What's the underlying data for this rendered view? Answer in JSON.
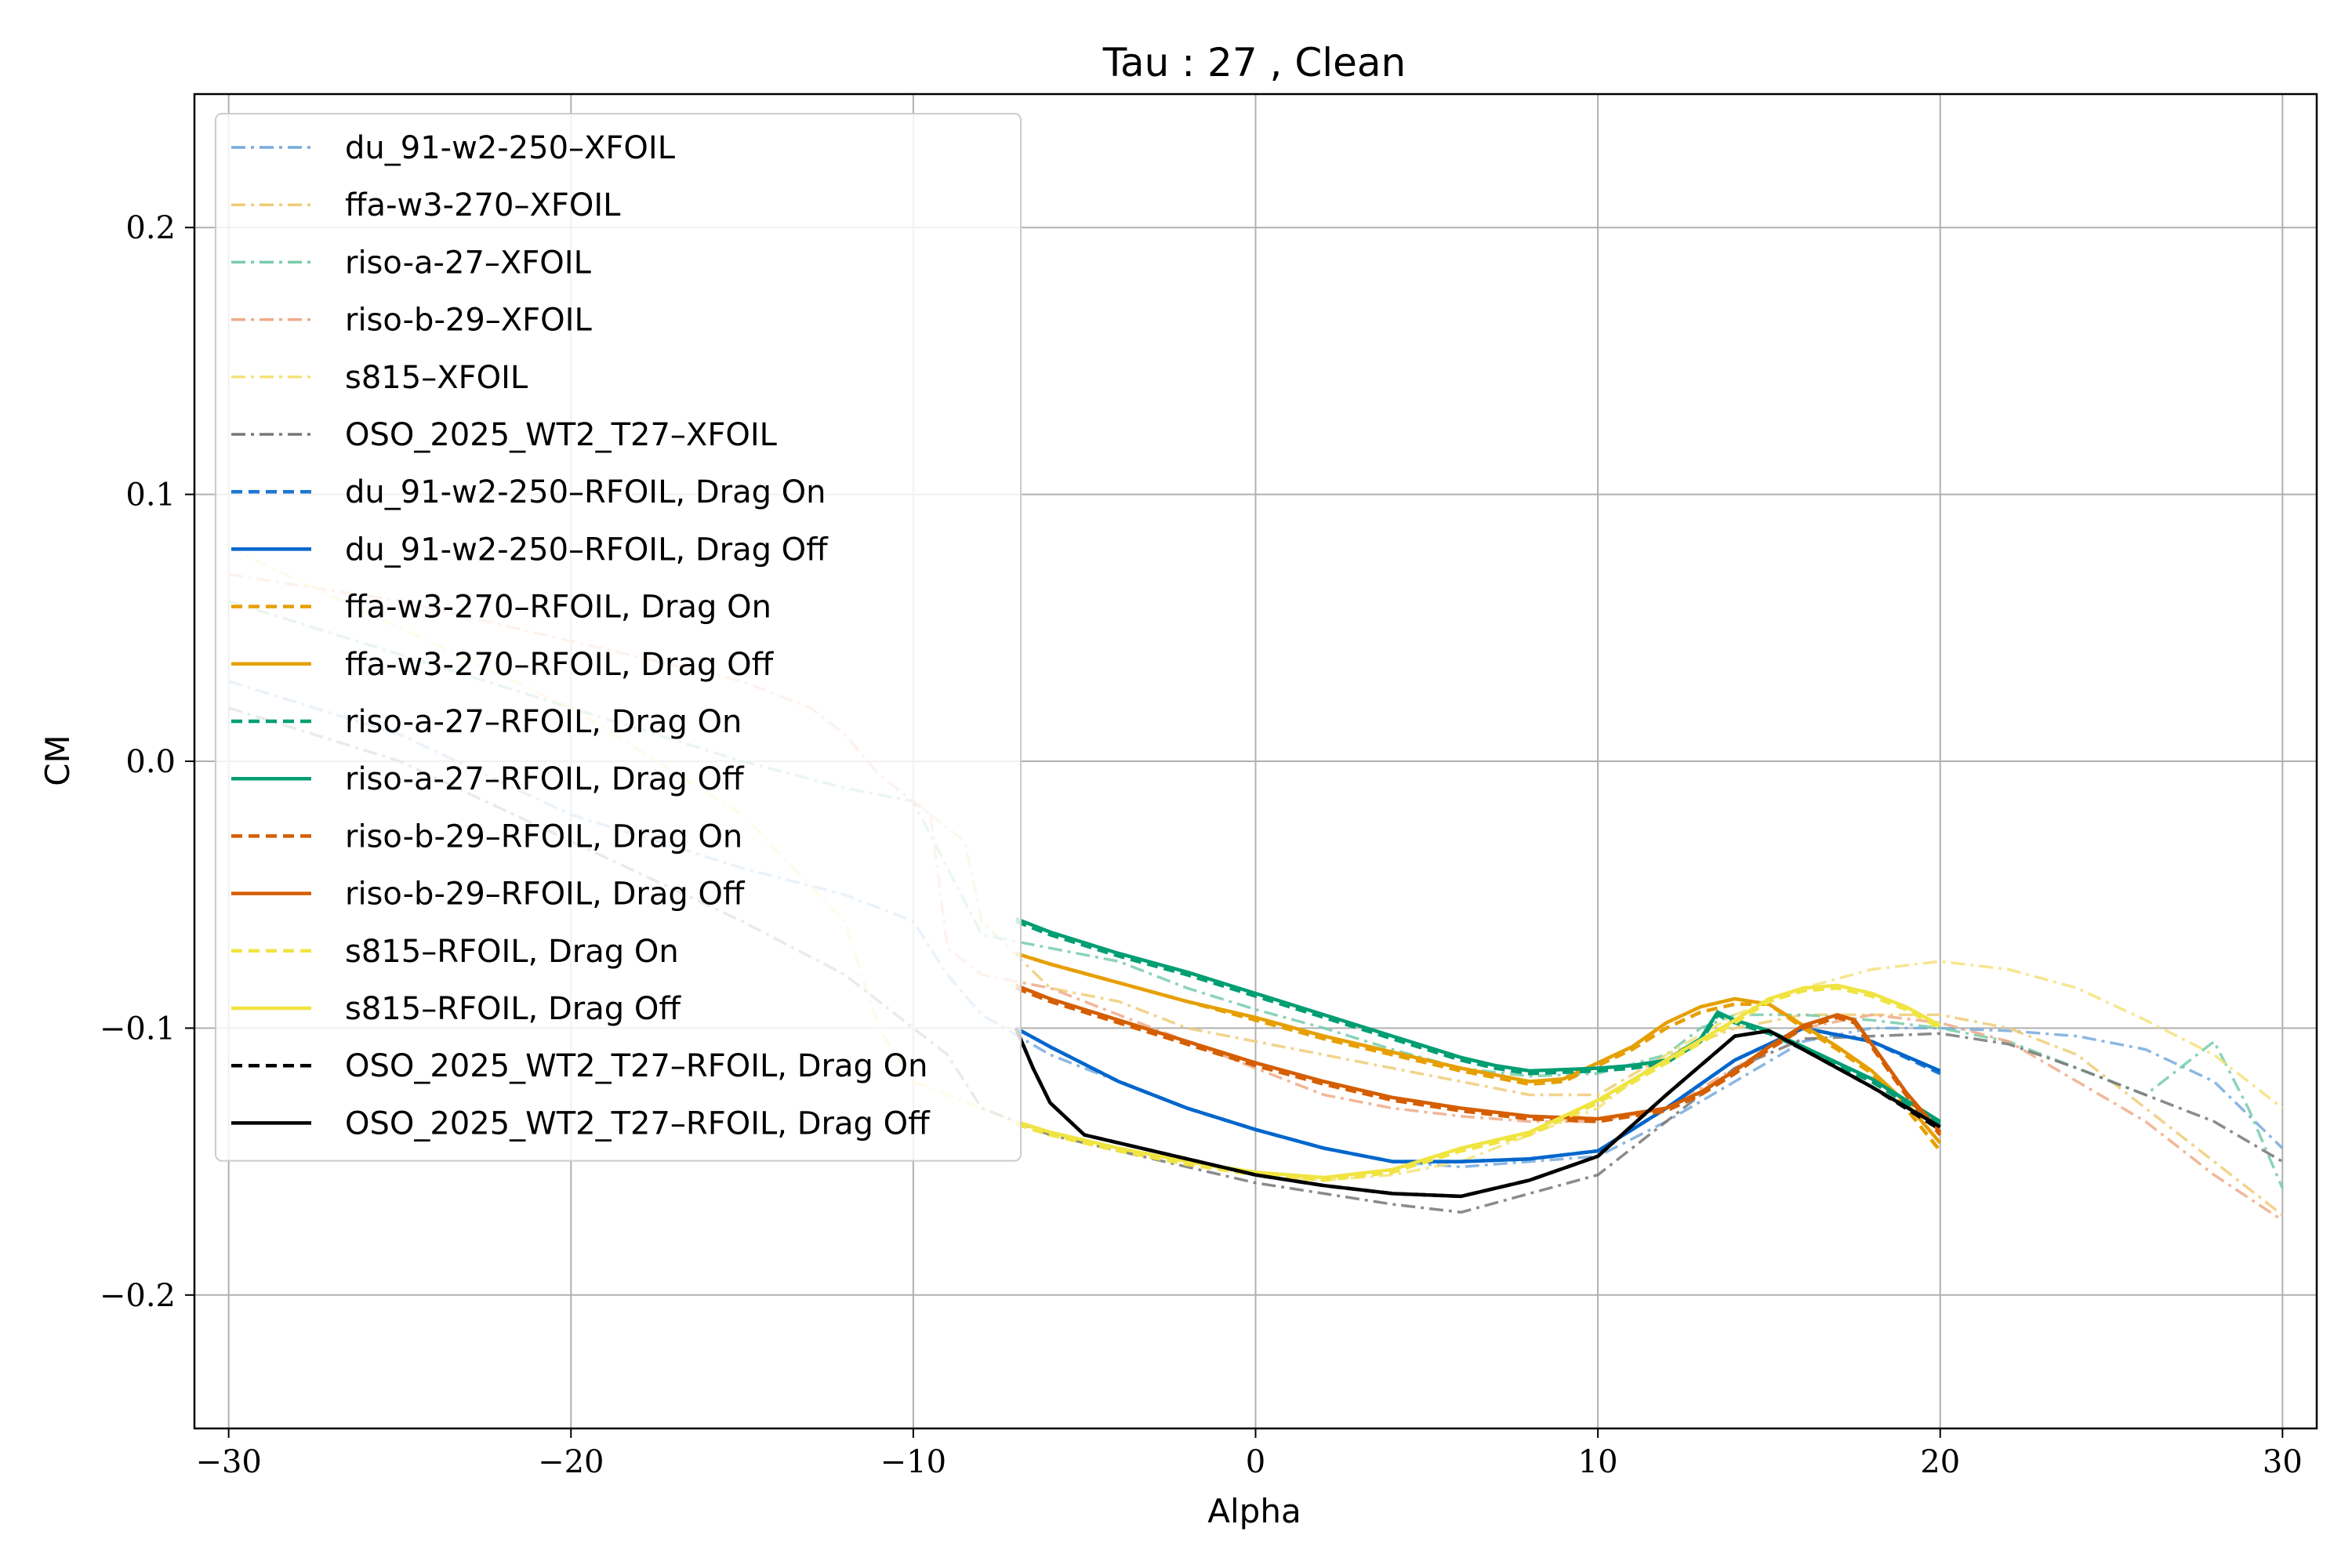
{
  "chart_data": {
    "type": "line",
    "title": "Tau : 27 , Clean",
    "xlabel": "Alpha",
    "ylabel": "CM",
    "xlim": [
      -31,
      31
    ],
    "ylim": [
      -0.25,
      0.25
    ],
    "xticks": [
      -30,
      -20,
      -10,
      0,
      10,
      20,
      30
    ],
    "yticks": [
      -0.2,
      -0.1,
      0.0,
      0.1,
      0.2
    ],
    "xtick_labels": [
      "−30",
      "−20",
      "−10",
      "0",
      "10",
      "20",
      "30"
    ],
    "ytick_labels": [
      "−0.2",
      "−0.1",
      "0.0",
      "0.1",
      "0.2"
    ],
    "grid": true,
    "legend_position": "upper-left",
    "series": [
      {
        "name": "du_91-w2-250–XFOIL",
        "color": "#77aadd",
        "style": "dashdot",
        "x": [
          -30,
          -25,
          -20,
          -15,
          -12,
          -10,
          -9,
          -8,
          -6,
          -4,
          -2,
          0,
          2,
          4,
          6,
          8,
          10,
          12,
          14,
          16,
          18,
          20,
          22,
          24,
          26,
          28,
          30
        ],
        "y": [
          0.03,
          0.01,
          -0.02,
          -0.04,
          -0.05,
          -0.06,
          -0.08,
          -0.095,
          -0.11,
          -0.12,
          -0.13,
          -0.138,
          -0.145,
          -0.15,
          -0.152,
          -0.15,
          -0.148,
          -0.135,
          -0.12,
          -0.105,
          -0.1,
          -0.1,
          -0.101,
          -0.103,
          -0.108,
          -0.12,
          -0.145
        ]
      },
      {
        "name": "ffa-w3-270–XFOIL",
        "color": "#eecc77",
        "style": "dashdot",
        "x": [
          -30,
          -25,
          -20,
          -15,
          -12,
          -10,
          -8.5,
          -8,
          -6,
          -4,
          -2,
          0,
          2,
          4,
          6,
          8,
          10,
          12,
          14,
          16,
          18,
          20,
          22,
          24,
          26,
          28,
          30
        ],
        "y": [
          0.06,
          0.04,
          0.02,
          0.0,
          -0.01,
          -0.015,
          -0.03,
          -0.06,
          -0.085,
          -0.09,
          -0.1,
          -0.105,
          -0.11,
          -0.115,
          -0.12,
          -0.125,
          -0.125,
          -0.11,
          -0.1,
          -0.095,
          -0.095,
          -0.095,
          -0.1,
          -0.11,
          -0.13,
          -0.15,
          -0.17
        ]
      },
      {
        "name": "riso-a-27–XFOIL",
        "color": "#77ccaa",
        "style": "dashdot",
        "x": [
          -30,
          -25,
          -20,
          -15,
          -12,
          -10,
          -9,
          -8,
          -6,
          -4,
          -2,
          0,
          2,
          4,
          6,
          8,
          10,
          12,
          13,
          14,
          16,
          18,
          20,
          22,
          24,
          26,
          27,
          28,
          29,
          30
        ],
        "y": [
          0.06,
          0.04,
          0.02,
          0.0,
          -0.01,
          -0.015,
          -0.04,
          -0.065,
          -0.07,
          -0.075,
          -0.085,
          -0.093,
          -0.1,
          -0.108,
          -0.115,
          -0.118,
          -0.117,
          -0.11,
          -0.1,
          -0.095,
          -0.095,
          -0.097,
          -0.1,
          -0.105,
          -0.115,
          -0.125,
          -0.115,
          -0.105,
          -0.13,
          -0.16
        ]
      },
      {
        "name": "riso-b-29–XFOIL",
        "color": "#eeaa88",
        "style": "dashdot",
        "x": [
          -30,
          -25,
          -20,
          -15,
          -13,
          -12,
          -11,
          -10,
          -9.5,
          -9,
          -8,
          -6,
          -4,
          -2,
          0,
          2,
          4,
          6,
          8,
          10,
          12,
          14,
          16,
          18,
          20,
          22,
          24,
          26,
          28,
          30
        ],
        "y": [
          0.07,
          0.06,
          0.045,
          0.03,
          0.02,
          0.01,
          -0.005,
          -0.015,
          -0.02,
          -0.07,
          -0.08,
          -0.085,
          -0.095,
          -0.105,
          -0.115,
          -0.125,
          -0.13,
          -0.133,
          -0.135,
          -0.135,
          -0.13,
          -0.115,
          -0.1,
          -0.095,
          -0.098,
          -0.105,
          -0.12,
          -0.135,
          -0.155,
          -0.172
        ]
      },
      {
        "name": "s815–XFOIL",
        "color": "#f5e27a",
        "style": "dashdot",
        "x": [
          -30,
          -25,
          -20,
          -15,
          -12,
          -11,
          -10,
          -9,
          -8,
          -6,
          -4,
          -2,
          0,
          2,
          4,
          6,
          8,
          10,
          12,
          14,
          16,
          18,
          20,
          22,
          24,
          26,
          28,
          30
        ],
        "y": [
          0.08,
          0.05,
          0.02,
          -0.02,
          -0.06,
          -0.1,
          -0.12,
          -0.125,
          -0.13,
          -0.14,
          -0.145,
          -0.15,
          -0.155,
          -0.157,
          -0.155,
          -0.15,
          -0.14,
          -0.13,
          -0.11,
          -0.095,
          -0.085,
          -0.078,
          -0.075,
          -0.078,
          -0.085,
          -0.097,
          -0.11,
          -0.13
        ]
      },
      {
        "name": "OSO_2025_WT2_T27–XFOIL",
        "color": "#777777",
        "style": "dashdot",
        "x": [
          -30,
          -25,
          -20,
          -15,
          -12,
          -10,
          -9,
          -8,
          -7,
          -6,
          -4,
          -2,
          0,
          2,
          4,
          6,
          8,
          10,
          12,
          14,
          16,
          18,
          20,
          22,
          24,
          26,
          28,
          30
        ],
        "y": [
          0.02,
          0.0,
          -0.03,
          -0.06,
          -0.08,
          -0.1,
          -0.11,
          -0.13,
          -0.135,
          -0.14,
          -0.146,
          -0.152,
          -0.158,
          -0.162,
          -0.166,
          -0.169,
          -0.162,
          -0.155,
          -0.135,
          -0.115,
          -0.104,
          -0.103,
          -0.102,
          -0.106,
          -0.115,
          -0.125,
          -0.135,
          -0.15
        ]
      },
      {
        "name": "du_91-w2-250–RFOIL, Drag On",
        "color": "#1f77d0",
        "style": "dashed",
        "x": [
          -7,
          -6,
          -4,
          -2,
          0,
          2,
          4,
          6,
          8,
          10,
          11,
          12,
          14,
          16,
          18,
          20
        ],
        "y": [
          -0.1,
          -0.107,
          -0.12,
          -0.13,
          -0.138,
          -0.145,
          -0.15,
          -0.15,
          -0.149,
          -0.146,
          -0.138,
          -0.13,
          -0.112,
          -0.1,
          -0.105,
          -0.117
        ]
      },
      {
        "name": "du_91-w2-250–RFOIL, Drag Off",
        "color": "#0066cc",
        "style": "solid",
        "x": [
          -7,
          -6,
          -4,
          -2,
          0,
          2,
          4,
          6,
          8,
          10,
          11,
          12,
          14,
          16,
          18,
          20
        ],
        "y": [
          -0.1,
          -0.107,
          -0.12,
          -0.13,
          -0.138,
          -0.145,
          -0.15,
          -0.15,
          -0.149,
          -0.146,
          -0.138,
          -0.13,
          -0.112,
          -0.1,
          -0.105,
          -0.116
        ]
      },
      {
        "name": "ffa-w3-270–RFOIL, Drag On",
        "color": "#e69f00",
        "style": "dashed",
        "x": [
          -7,
          -6,
          -4,
          -2,
          0,
          2,
          4,
          6,
          8,
          9,
          10,
          11,
          12,
          13,
          14,
          15,
          16,
          17,
          18,
          19,
          20
        ],
        "y": [
          -0.072,
          -0.076,
          -0.083,
          -0.09,
          -0.097,
          -0.104,
          -0.11,
          -0.116,
          -0.121,
          -0.12,
          -0.114,
          -0.108,
          -0.1,
          -0.094,
          -0.091,
          -0.091,
          -0.1,
          -0.108,
          -0.117,
          -0.13,
          -0.146
        ]
      },
      {
        "name": "ffa-w3-270–RFOIL, Drag Off",
        "color": "#e69f00",
        "style": "solid",
        "x": [
          -7,
          -6,
          -4,
          -2,
          0,
          2,
          4,
          6,
          8,
          9,
          10,
          11,
          12,
          13,
          14,
          15,
          16,
          17,
          18,
          19,
          20
        ],
        "y": [
          -0.072,
          -0.076,
          -0.083,
          -0.09,
          -0.096,
          -0.103,
          -0.109,
          -0.115,
          -0.12,
          -0.119,
          -0.113,
          -0.107,
          -0.098,
          -0.092,
          -0.089,
          -0.091,
          -0.099,
          -0.107,
          -0.116,
          -0.128,
          -0.143
        ]
      },
      {
        "name": "riso-a-27–RFOIL, Drag On",
        "color": "#009e73",
        "style": "dashed",
        "x": [
          -7,
          -6,
          -4,
          -2,
          0,
          2,
          4,
          6,
          7,
          8,
          10,
          11,
          12,
          13,
          13.5,
          14,
          15,
          16,
          17,
          18,
          19,
          20
        ],
        "y": [
          -0.06,
          -0.065,
          -0.073,
          -0.08,
          -0.088,
          -0.096,
          -0.104,
          -0.112,
          -0.115,
          -0.117,
          -0.116,
          -0.115,
          -0.113,
          -0.105,
          -0.095,
          -0.098,
          -0.102,
          -0.108,
          -0.114,
          -0.12,
          -0.128,
          -0.136
        ]
      },
      {
        "name": "riso-a-27–RFOIL, Drag Off",
        "color": "#009e73",
        "style": "solid",
        "x": [
          -7,
          -6,
          -4,
          -2,
          0,
          2,
          4,
          6,
          7,
          8,
          10,
          11,
          12,
          13,
          13.5,
          14,
          15,
          16,
          17,
          18,
          19,
          20
        ],
        "y": [
          -0.059,
          -0.064,
          -0.072,
          -0.079,
          -0.087,
          -0.095,
          -0.103,
          -0.111,
          -0.114,
          -0.116,
          -0.115,
          -0.114,
          -0.112,
          -0.104,
          -0.094,
          -0.097,
          -0.101,
          -0.107,
          -0.113,
          -0.119,
          -0.127,
          -0.135
        ]
      },
      {
        "name": "riso-b-29–RFOIL, Drag On",
        "color": "#d55e00",
        "style": "dashed",
        "x": [
          -7,
          -6,
          -4,
          -2,
          0,
          2,
          4,
          6,
          8,
          10,
          12,
          13,
          14,
          15,
          16,
          17,
          17.5,
          18,
          19,
          20
        ],
        "y": [
          -0.085,
          -0.09,
          -0.098,
          -0.106,
          -0.114,
          -0.121,
          -0.127,
          -0.131,
          -0.134,
          -0.135,
          -0.131,
          -0.125,
          -0.117,
          -0.108,
          -0.1,
          -0.096,
          -0.098,
          -0.107,
          -0.125,
          -0.14
        ]
      },
      {
        "name": "riso-b-29–RFOIL, Drag Off",
        "color": "#d55e00",
        "style": "solid",
        "x": [
          -7,
          -6,
          -4,
          -2,
          0,
          2,
          4,
          6,
          8,
          10,
          12,
          13,
          14,
          15,
          16,
          17,
          17.5,
          18,
          19,
          20
        ],
        "y": [
          -0.084,
          -0.089,
          -0.097,
          -0.105,
          -0.113,
          -0.12,
          -0.126,
          -0.13,
          -0.133,
          -0.134,
          -0.13,
          -0.124,
          -0.116,
          -0.107,
          -0.099,
          -0.095,
          -0.097,
          -0.106,
          -0.124,
          -0.139
        ]
      },
      {
        "name": "s815–RFOIL, Drag On",
        "color": "#f0e442",
        "style": "dashed",
        "x": [
          -7,
          -6,
          -4,
          -2,
          0,
          2,
          4,
          5,
          6,
          8,
          10,
          12,
          14,
          15,
          16,
          17,
          18,
          19,
          20
        ],
        "y": [
          -0.136,
          -0.14,
          -0.146,
          -0.151,
          -0.155,
          -0.157,
          -0.154,
          -0.15,
          -0.146,
          -0.14,
          -0.128,
          -0.113,
          -0.098,
          -0.09,
          -0.086,
          -0.085,
          -0.088,
          -0.093,
          -0.1
        ]
      },
      {
        "name": "s815–RFOIL, Drag Off",
        "color": "#f0e442",
        "style": "solid",
        "x": [
          -7,
          -6,
          -4,
          -2,
          0,
          2,
          4,
          5,
          6,
          8,
          10,
          12,
          14,
          15,
          16,
          17,
          18,
          19,
          20
        ],
        "y": [
          -0.135,
          -0.139,
          -0.145,
          -0.15,
          -0.154,
          -0.156,
          -0.153,
          -0.149,
          -0.145,
          -0.139,
          -0.127,
          -0.112,
          -0.097,
          -0.089,
          -0.085,
          -0.084,
          -0.087,
          -0.092,
          -0.099
        ]
      },
      {
        "name": "OSO_2025_WT2_T27–RFOIL, Drag On",
        "color": "#000000",
        "style": "dashed",
        "x": [
          -7,
          -6.5,
          -6,
          -5,
          -4,
          -2,
          0,
          2,
          4,
          6,
          8,
          10,
          12,
          14,
          15,
          16,
          18,
          20
        ],
        "y": [
          -0.1,
          -0.115,
          -0.128,
          -0.14,
          -0.143,
          -0.149,
          -0.155,
          -0.159,
          -0.162,
          -0.163,
          -0.157,
          -0.148,
          -0.125,
          -0.103,
          -0.101,
          -0.108,
          -0.122,
          -0.138
        ]
      },
      {
        "name": "OSO_2025_WT2_T27–RFOIL, Drag Off",
        "color": "#000000",
        "style": "solid",
        "x": [
          -7,
          -6.5,
          -6,
          -5,
          -4,
          -2,
          0,
          2,
          4,
          6,
          8,
          10,
          12,
          14,
          15,
          16,
          18,
          20
        ],
        "y": [
          -0.1,
          -0.115,
          -0.128,
          -0.14,
          -0.143,
          -0.149,
          -0.155,
          -0.159,
          -0.162,
          -0.163,
          -0.157,
          -0.148,
          -0.125,
          -0.103,
          -0.101,
          -0.108,
          -0.122,
          -0.137
        ]
      }
    ]
  }
}
